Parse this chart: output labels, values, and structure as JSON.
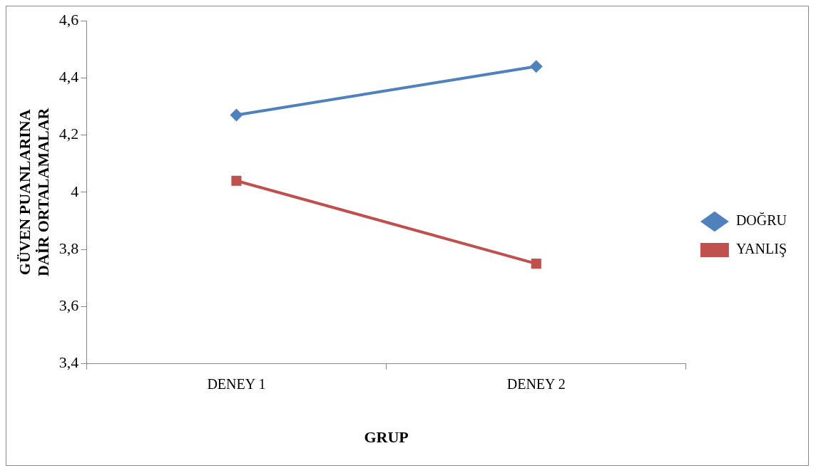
{
  "chart_data": {
    "type": "line",
    "xlabel": "GRUP",
    "ylabel": "GÜVEN PUANLARINA DAİR ORTALAMALAR",
    "categories": [
      "DENEY 1",
      "DENEY 2"
    ],
    "series": [
      {
        "name": "DOĞRU",
        "color": "#4f81bd",
        "values": [
          4.27,
          4.44
        ],
        "marker": "diamond"
      },
      {
        "name": "YANLIŞ",
        "color": "#c0504d",
        "values": [
          4.04,
          3.75
        ],
        "marker": "square"
      }
    ],
    "ylim": [
      3.4,
      4.6
    ],
    "yticks": [
      {
        "value": 3.4,
        "label": "3,4"
      },
      {
        "value": 3.6,
        "label": "3,6"
      },
      {
        "value": 3.8,
        "label": "3,8"
      },
      4,
      {
        "value": 4.2,
        "label": "4,2"
      },
      {
        "value": 4.4,
        "label": "4,4"
      },
      {
        "value": 4.6,
        "label": "4,6"
      }
    ],
    "grid": false,
    "legend": "right",
    "line_style": "solid"
  }
}
